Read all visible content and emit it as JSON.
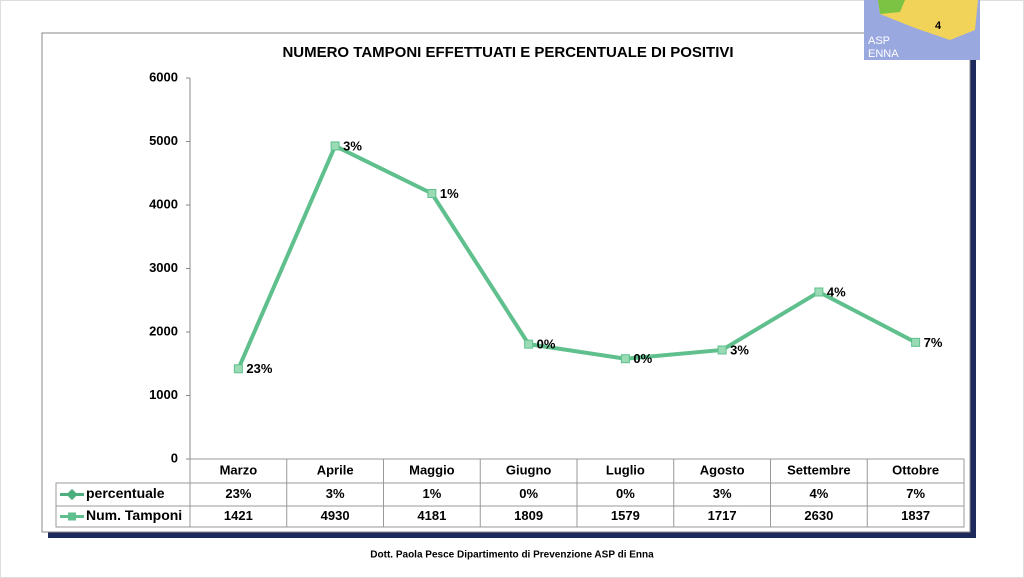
{
  "chart_data": {
    "type": "line",
    "title": "NUMERO TAMPONI EFFETTUATI E PERCENTUALE DI POSITIVI",
    "categories": [
      "Marzo",
      "Aprile",
      "Maggio",
      "Giugno",
      "Luglio",
      "Agosto",
      "Settembre",
      "Ottobre"
    ],
    "series": [
      {
        "name": "percentuale",
        "color": "#4caf7d",
        "values": [
          23,
          3,
          1,
          0,
          0,
          3,
          4,
          7
        ],
        "value_labels": [
          "23%",
          "3%",
          "1%",
          "0%",
          "0%",
          "3%",
          "4%",
          "7%"
        ]
      },
      {
        "name": "Num. Tamponi",
        "color": "#5fc08d",
        "values": [
          1421,
          4930,
          4181,
          1809,
          1579,
          1717,
          2630,
          1837
        ]
      }
    ],
    "ylim": [
      0,
      6000
    ],
    "yticks": [
      0,
      1000,
      2000,
      3000,
      4000,
      5000,
      6000
    ],
    "grid": false
  },
  "footer": "Dott. Paola Pesce Dipartimento di Prevenzione ASP di Enna",
  "logo": {
    "number": "4",
    "line1": "ASP",
    "line2": "ENNA"
  }
}
